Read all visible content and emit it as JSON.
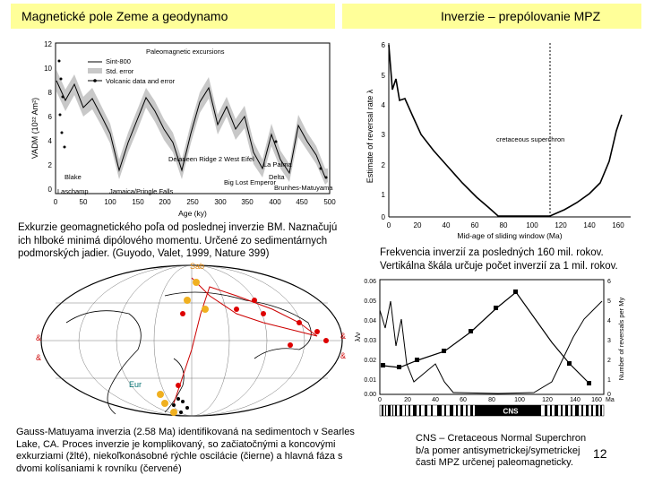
{
  "header": {
    "left_title": "Magnetické pole Zeme a geodynamo",
    "right_title": "Inverzie – prepólovanie MPZ"
  },
  "fig_vadm": {
    "legend_title": "Paleomagnetic excursions",
    "legend_items": [
      "Sint-800",
      "Std. error",
      "Volcanic data and error"
    ],
    "ylabel": "VADM (10²² Am²)",
    "xlabel": "Age (ky)",
    "yticks": [
      "12",
      "10",
      "8",
      "6",
      "4",
      "2",
      "0"
    ],
    "xticks": [
      "0",
      "50",
      "100",
      "150",
      "200",
      "250",
      "300",
      "350",
      "400",
      "450",
      "500"
    ],
    "annotations": [
      "Blake",
      "Laschamp",
      "Jamaica/Pringle Falls",
      "Delaneen Ridge 2 West Eifel",
      "Big Lost Emperor",
      "La Palma",
      "Delta",
      "Brunhes-Matuyama"
    ]
  },
  "fig_rate": {
    "ylabel": "Estimate of reversal rate λ",
    "xlabel": "Mid-age of sliding window (Ma)",
    "yticks": [
      "6",
      "5",
      "4",
      "3",
      "2",
      "1",
      "0"
    ],
    "xticks": [
      "0",
      "20",
      "40",
      "60",
      "80",
      "100",
      "120",
      "140",
      "160"
    ],
    "annotation": "cretaceous superchron"
  },
  "fig_globe": {
    "labels": [
      "Sab",
      "Eur",
      "&",
      "&",
      "&",
      "&"
    ]
  },
  "fig_cns": {
    "left_ticks": [
      "0.06",
      "0.05",
      "0.04",
      "0.03",
      "0.02",
      "0.01",
      "0.00"
    ],
    "left_label": "λ/ν",
    "right_ticks": [
      "6",
      "5",
      "4",
      "3",
      "2",
      "1",
      "0"
    ],
    "right_label": "Number of reversals per My",
    "xticks": [
      "0",
      "20",
      "40",
      "60",
      "80",
      "100",
      "120",
      "140",
      "160"
    ],
    "xunit": "Ma",
    "bar_label": "CNS"
  },
  "captions": {
    "vadm": "Exkurzie geomagnetického poľa od poslednej inverzie BM. Naznačujú ich hlboké minimá dipólového momentu. Určené zo sedimentárnych podmorských jadier. (Guyodo, Valet, 1999, Nature 399)",
    "rate": "Frekvencia inverzií za posledných 160 mil. rokov. Vertikálna škála určuje počet inverzií za 1 mil. rokov.",
    "globe": "Gauss-Matuyama inverzia (2.58 Ma) identifikovaná na sedimentoch v Searles Lake, CA. Proces inverzie je komplikovaný, so začiatočnými a koncovými exkurziami (žlté), niekoľkonásobné rýchle oscilácie (čierne) a hlavná fáza s dvomi kolísaniami k rovníku (červené)",
    "cns": "CNS – Cretaceous Normal Superchron b/a pomer antisymetrickej/symetrickej časti MPZ určenej paleomagneticky."
  },
  "page_number": "12"
}
